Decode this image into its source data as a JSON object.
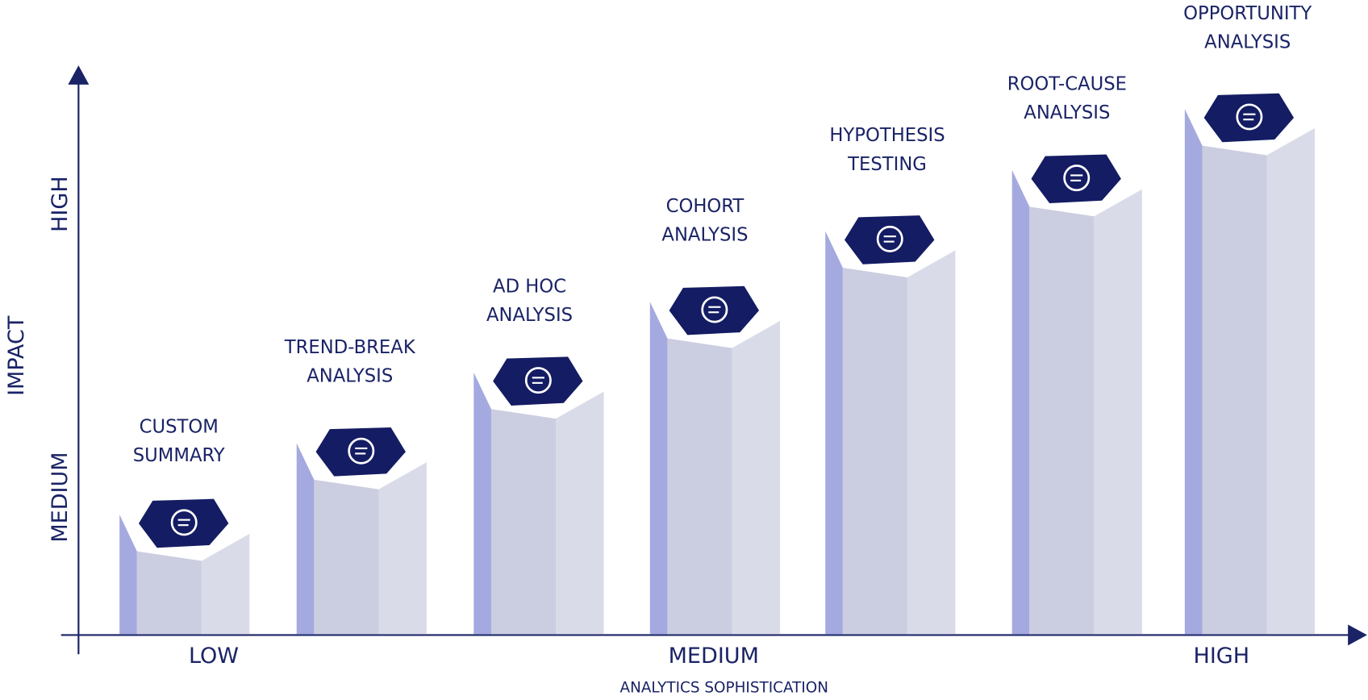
{
  "y_axis": {
    "title": "IMPACT",
    "levels": [
      "MEDIUM",
      "HIGH"
    ]
  },
  "x_axis": {
    "title": "ANALYTICS SOPHISTICATION",
    "levels": [
      "LOW",
      "MEDIUM",
      "HIGH"
    ]
  },
  "steps": [
    {
      "label": [
        "CUSTOM",
        "SUMMARY"
      ]
    },
    {
      "label": [
        "TREND-BREAK",
        "ANALYSIS"
      ]
    },
    {
      "label": [
        "AD HOC",
        "ANALYSIS"
      ]
    },
    {
      "label": [
        "COHORT",
        "ANALYSIS"
      ]
    },
    {
      "label": [
        "HYPOTHESIS",
        "TESTING"
      ]
    },
    {
      "label": [
        "ROOT-CAUSE",
        "ANALYSIS"
      ]
    },
    {
      "label": [
        "OPPORTUNITY",
        "ANALYSIS"
      ]
    }
  ]
}
